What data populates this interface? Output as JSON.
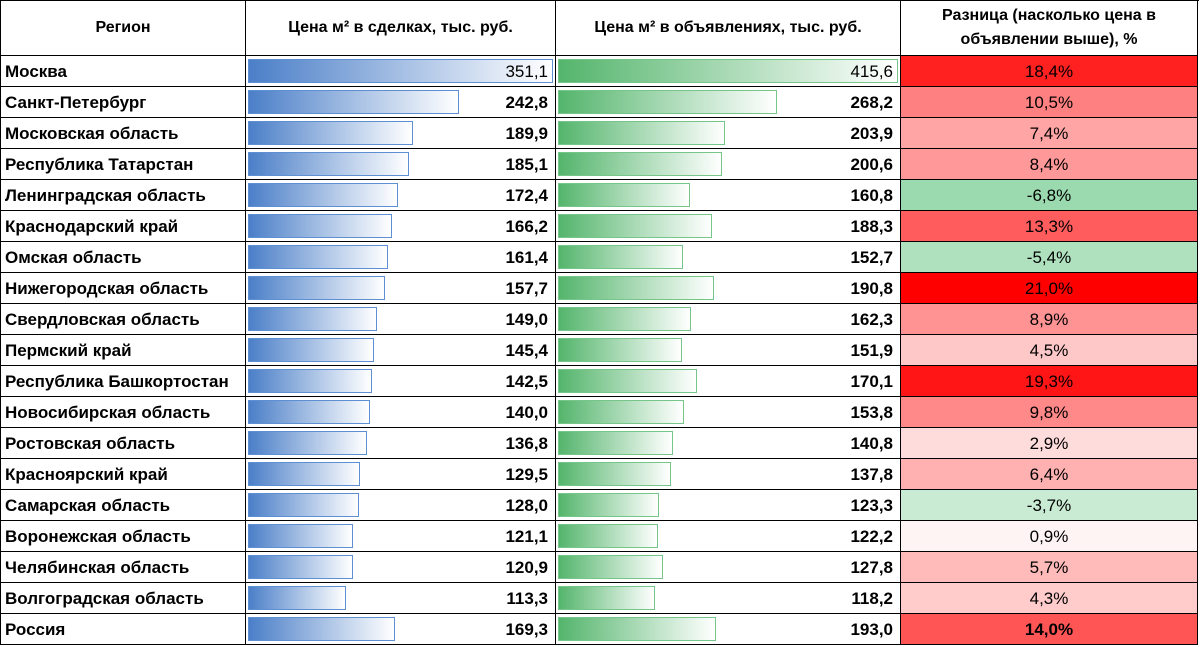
{
  "chart_data": {
    "type": "table",
    "columns": {
      "region": "Регион",
      "deals": "Цена м² в сделках, тыс. руб.",
      "listings": "Цена м² в объявлениях, тыс. руб.",
      "diff": "Разница (насколько цена в объявлении выше), %"
    },
    "rows": [
      {
        "region": "Москва",
        "deals": "351,1",
        "listings": "415,6",
        "diff": "18,4%"
      },
      {
        "region": "Санкт-Петербург",
        "deals": "242,8",
        "listings": "268,2",
        "diff": "10,5%"
      },
      {
        "region": "Московская область",
        "deals": "189,9",
        "listings": "203,9",
        "diff": "7,4%"
      },
      {
        "region": "Республика Татарстан",
        "deals": "185,1",
        "listings": "200,6",
        "diff": "8,4%"
      },
      {
        "region": "Ленинградская область",
        "deals": "172,4",
        "listings": "160,8",
        "diff": "-6,8%"
      },
      {
        "region": "Краснодарский край",
        "deals": "166,2",
        "listings": "188,3",
        "diff": "13,3%"
      },
      {
        "region": "Омская область",
        "deals": "161,4",
        "listings": "152,7",
        "diff": "-5,4%"
      },
      {
        "region": "Нижегородская область",
        "deals": "157,7",
        "listings": "190,8",
        "diff": "21,0%"
      },
      {
        "region": "Свердловская область",
        "deals": "149,0",
        "listings": "162,3",
        "diff": "8,9%"
      },
      {
        "region": "Пермский край",
        "deals": "145,4",
        "listings": "151,9",
        "diff": "4,5%"
      },
      {
        "region": "Республика Башкортостан",
        "deals": "142,5",
        "listings": "170,1",
        "diff": "19,3%"
      },
      {
        "region": "Новосибирская область",
        "deals": "140,0",
        "listings": "153,8",
        "diff": "9,8%"
      },
      {
        "region": "Ростовская область",
        "deals": "136,8",
        "listings": "140,8",
        "diff": "2,9%"
      },
      {
        "region": "Красноярский край",
        "deals": "129,5",
        "listings": "137,8",
        "diff": "6,4%"
      },
      {
        "region": "Самарская область",
        "deals": "128,0",
        "listings": "123,3",
        "diff": "-3,7%"
      },
      {
        "region": "Воронежская область",
        "deals": "121,1",
        "listings": "122,2",
        "diff": "0,9%"
      },
      {
        "region": "Челябинская область",
        "deals": "120,9",
        "listings": "127,8",
        "diff": "5,7%"
      },
      {
        "region": "Волгоградская область",
        "deals": "113,3",
        "listings": "118,2",
        "diff": "4,3%"
      },
      {
        "region": "Россия",
        "deals": "169,3",
        "listings": "193,0",
        "diff": "14,0%"
      }
    ],
    "color_scale": {
      "negative": "#9bd9ae",
      "zero": "#ffffff",
      "positive": "#ff0000"
    }
  },
  "colors": {
    "deals_bar": "#4b7fc8",
    "deals_bar_border": "#5e8fd3",
    "listings_bar": "#54b56c",
    "listings_bar_border": "#76c68a",
    "grid": "#000000"
  }
}
